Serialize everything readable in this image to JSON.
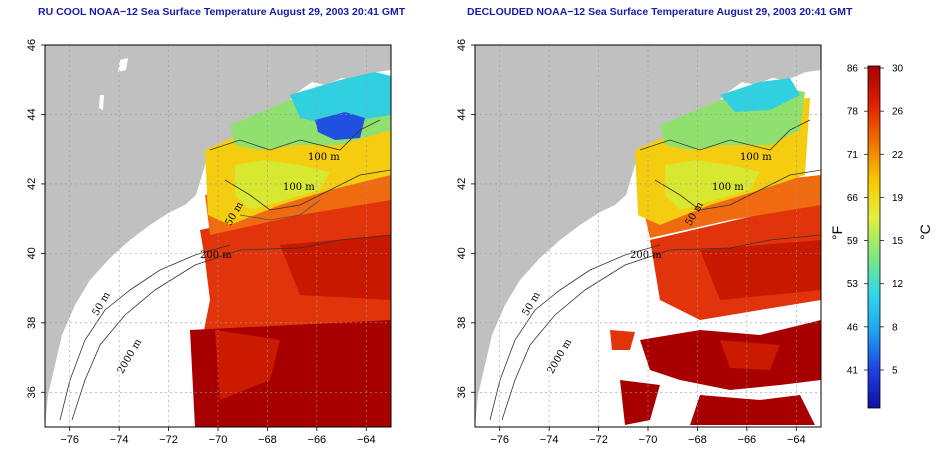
{
  "maps": [
    {
      "id": "left",
      "title": "RU COOL NOAA−12 Sea Surface Temperature August 29, 2003 20:41 GMT",
      "clouds_removed": false
    },
    {
      "id": "right",
      "title": "DECLOUDED NOAA−12 Sea Surface Temperature August 29, 2003 20:41 GMT",
      "clouds_removed": true
    }
  ],
  "axes": {
    "x_ticks": [
      "−76",
      "−74",
      "−72",
      "−70",
      "−68",
      "−66",
      "−64"
    ],
    "y_ticks": [
      "36",
      "38",
      "40",
      "42",
      "44",
      "46"
    ],
    "lon_range": [
      -77,
      -63
    ],
    "lat_range": [
      35,
      46
    ]
  },
  "contour_labels": {
    "m100a": "100 m",
    "m100b": "100 m",
    "m50a": "50 m",
    "m200": "200 m",
    "m50b": "50 m",
    "m2000": "2000 m"
  },
  "colorbar": {
    "fahrenheit_ticks": [
      "86",
      "78",
      "71",
      "66",
      "59",
      "53",
      "46",
      "41"
    ],
    "celsius_ticks": [
      "30",
      "26",
      "22",
      "19",
      "15",
      "12",
      "8",
      "5"
    ],
    "fahrenheit_unit": "°F",
    "celsius_unit": "°C",
    "colors": [
      "#a50000",
      "#dd2000",
      "#f07000",
      "#f8c800",
      "#e0f040",
      "#80e880",
      "#30d8e8",
      "#20a0f0",
      "#2040e0",
      "#1010a0"
    ]
  },
  "colors": {
    "land": "#c0c0c0",
    "title": "#1a1aa8",
    "grid": "#9a9a9a"
  }
}
